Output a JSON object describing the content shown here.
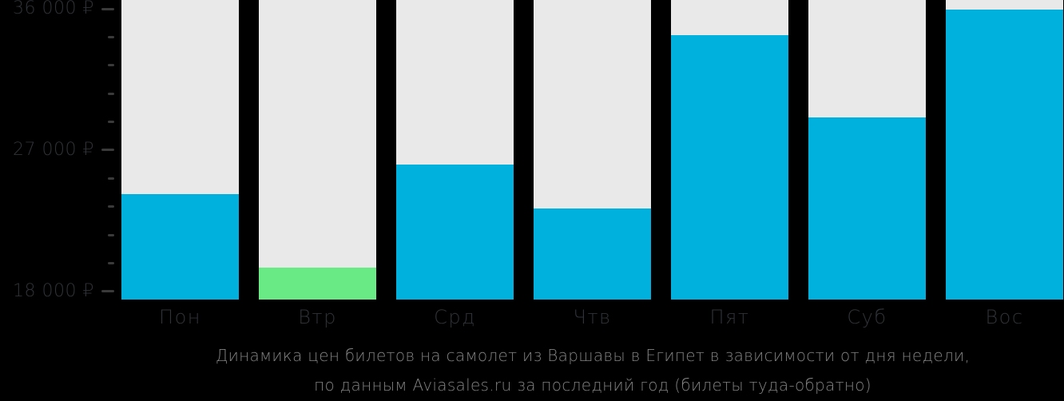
{
  "chart_data": {
    "type": "bar",
    "title": "Динамика цен билетов на самолет из Варшавы в Египет в зависимости от дня недели, по данным Aviasales.ru за последний год (билеты туда-обратно)",
    "title_lines": [
      "Динамика цен билетов на самолет из Варшавы в Египет в зависимости от дня недели,",
      "по данным Aviasales.ru за последний год (билеты туда-обратно)"
    ],
    "categories": [
      "Пон",
      "Втр",
      "Срд",
      "Чтв",
      "Пят",
      "Суб",
      "Вос"
    ],
    "values": [
      24200,
      19500,
      26100,
      23300,
      34300,
      29100,
      35950
    ],
    "currency": "₽",
    "highlight_index": 1,
    "highlight_meaning": "cheapest-day",
    "y_axis": {
      "major_ticks": [
        {
          "value": 36000,
          "label": "36 000 ₽"
        },
        {
          "value": 27000,
          "label": "27 000 ₽"
        },
        {
          "value": 18000,
          "label": "18 000 ₽"
        }
      ],
      "minor_tick_step": 1800,
      "ylim": [
        17480,
        36560
      ]
    },
    "layout": {
      "grid": false,
      "legend_position": "none",
      "bars_background_full_height": true
    },
    "colors": {
      "background": "#000000",
      "column_background": "#e9e9e9",
      "bar_default": "#00b1dd",
      "bar_highlight": "#69ea85",
      "axis_text": "#2f3237",
      "tick": "#3a3a3a",
      "caption_text": "#828282"
    }
  }
}
